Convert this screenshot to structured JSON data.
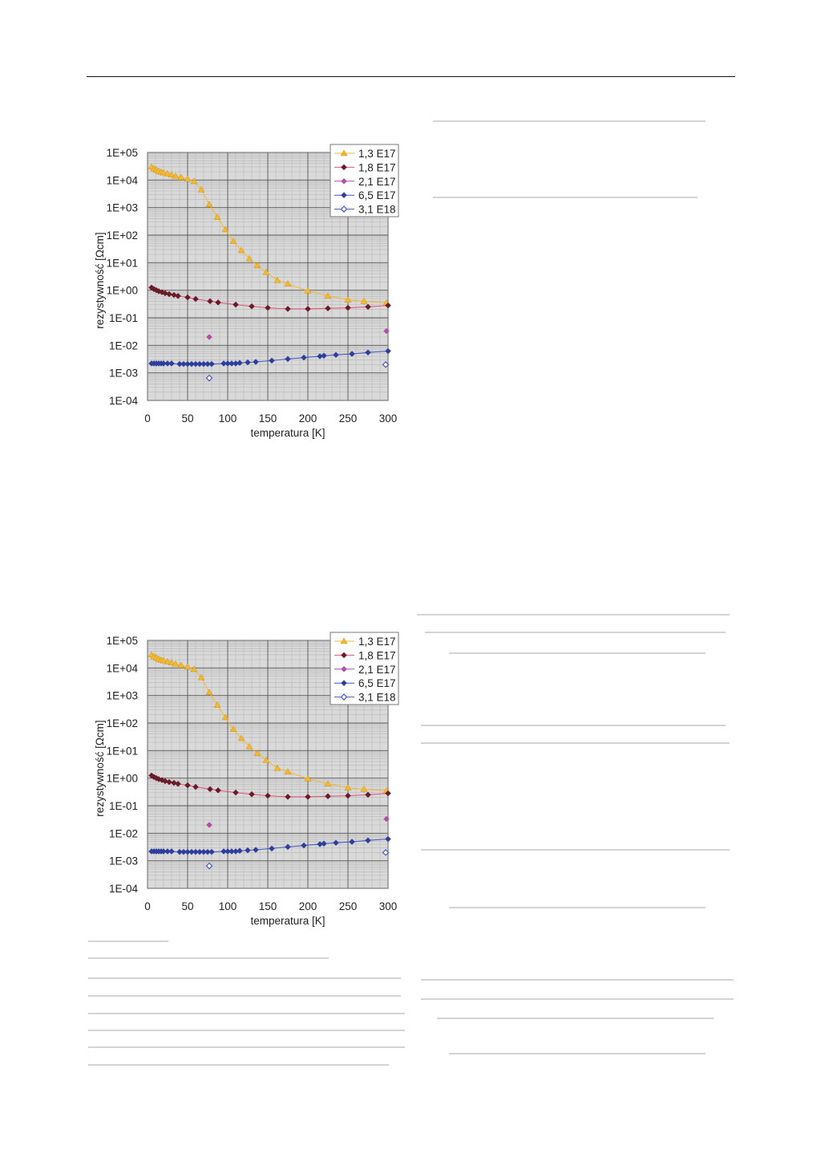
{
  "chart_data": [
    {
      "type": "scatter",
      "xlabel": "temperatura [K]",
      "ylabel": "rezystywność [Ωcm]",
      "xlim": [
        0,
        300
      ],
      "ylim": [
        0.0001,
        100000
      ],
      "y_scale": "log",
      "x_ticks": [
        "0",
        "50",
        "100",
        "150",
        "200",
        "250",
        "300"
      ],
      "y_ticks": [
        "1E+05",
        "1E+04",
        "1E+03",
        "1E+02",
        "1E+01",
        "1E+00",
        "1E-01",
        "1E-02",
        "1E-03",
        "1E-04"
      ],
      "grid": true,
      "legend_position": "top-right",
      "series": [
        {
          "name": "1,3 E17",
          "color": "#f5b82e",
          "marker": "triangle",
          "line": true,
          "x": [
            5,
            8,
            11,
            14,
            17,
            20,
            25,
            30,
            35,
            42,
            50,
            58,
            67,
            77,
            87,
            97,
            107,
            117,
            127,
            137,
            148,
            162,
            175,
            200,
            225,
            250,
            270,
            298
          ],
          "y": [
            30000,
            26000,
            23000,
            21000,
            19500,
            18500,
            17000,
            15500,
            14000,
            12500,
            11000,
            9000,
            4500,
            1300,
            450,
            160,
            60,
            28,
            14,
            8,
            4.5,
            2.3,
            1.7,
            0.95,
            0.62,
            0.45,
            0.4,
            0.35
          ]
        },
        {
          "name": "1,8 E17",
          "color": "#6b1a28",
          "marker": "diamond",
          "line": true,
          "x": [
            5,
            8,
            11,
            14,
            18,
            22,
            27,
            33,
            38,
            50,
            60,
            78,
            88,
            110,
            130,
            150,
            175,
            200,
            225,
            250,
            275,
            300
          ],
          "y": [
            1.25,
            1.1,
            1.0,
            0.92,
            0.85,
            0.78,
            0.72,
            0.67,
            0.62,
            0.55,
            0.48,
            0.4,
            0.36,
            0.3,
            0.26,
            0.23,
            0.21,
            0.21,
            0.22,
            0.23,
            0.25,
            0.28
          ]
        },
        {
          "name": "2,1 E17",
          "color": "#b34fa8",
          "marker": "diamond",
          "line": false,
          "x": [
            77,
            298
          ],
          "y": [
            0.02,
            0.033
          ]
        },
        {
          "name": "6,5 E17",
          "color": "#2e3e9e",
          "marker": "diamond",
          "line": true,
          "x": [
            5,
            8,
            11,
            14,
            17,
            20,
            25,
            30,
            40,
            45,
            50,
            55,
            60,
            65,
            70,
            75,
            80,
            95,
            100,
            105,
            110,
            115,
            125,
            135,
            155,
            175,
            195,
            215,
            220,
            235,
            255,
            275,
            300
          ],
          "y": [
            0.0022,
            0.0022,
            0.0022,
            0.0022,
            0.0022,
            0.0022,
            0.0022,
            0.0022,
            0.0021,
            0.0021,
            0.0021,
            0.0021,
            0.0021,
            0.0021,
            0.0021,
            0.0021,
            0.0021,
            0.0022,
            0.0022,
            0.0022,
            0.0022,
            0.0023,
            0.0024,
            0.0025,
            0.0028,
            0.0032,
            0.0036,
            0.004,
            0.0042,
            0.0045,
            0.0049,
            0.0055,
            0.0062
          ]
        },
        {
          "name": "3,1 E18",
          "color": "#4a5bc2",
          "marker": "diamond-open",
          "line": false,
          "x": [
            77,
            297
          ],
          "y": [
            0.00065,
            0.002
          ]
        }
      ]
    },
    {
      "type": "scatter",
      "xlabel": "temperatura [K]",
      "ylabel": "rezystywność [Ωcm]",
      "xlim": [
        0,
        300
      ],
      "ylim": [
        0.0001,
        100000
      ],
      "y_scale": "log",
      "x_ticks": [
        "0",
        "50",
        "100",
        "150",
        "200",
        "250",
        "300"
      ],
      "y_ticks": [
        "1E+05",
        "1E+04",
        "1E+03",
        "1E+02",
        "1E+01",
        "1E+00",
        "1E-01",
        "1E-02",
        "1E-03",
        "1E-04"
      ],
      "grid": true,
      "legend_position": "top-right",
      "series": [
        {
          "name": "1,3 E17",
          "color": "#f5b82e",
          "marker": "triangle",
          "line": true,
          "x": [
            5,
            8,
            11,
            14,
            17,
            20,
            25,
            30,
            35,
            42,
            50,
            58,
            67,
            77,
            87,
            97,
            107,
            117,
            127,
            137,
            148,
            162,
            175,
            200,
            225,
            250,
            270,
            298
          ],
          "y": [
            30000,
            26000,
            23000,
            21000,
            19500,
            18500,
            17000,
            15500,
            14000,
            12500,
            11000,
            9000,
            4500,
            1300,
            450,
            160,
            60,
            28,
            14,
            8,
            4.5,
            2.3,
            1.7,
            0.95,
            0.62,
            0.45,
            0.4,
            0.35
          ]
        },
        {
          "name": "1,8 E17",
          "color": "#6b1a28",
          "marker": "diamond",
          "line": true,
          "x": [
            5,
            8,
            11,
            14,
            18,
            22,
            27,
            33,
            38,
            50,
            60,
            78,
            88,
            110,
            130,
            150,
            175,
            200,
            225,
            250,
            275,
            300
          ],
          "y": [
            1.25,
            1.1,
            1.0,
            0.92,
            0.85,
            0.78,
            0.72,
            0.67,
            0.62,
            0.55,
            0.48,
            0.4,
            0.36,
            0.3,
            0.26,
            0.23,
            0.21,
            0.21,
            0.22,
            0.23,
            0.25,
            0.28
          ]
        },
        {
          "name": "2,1 E17",
          "color": "#b34fa8",
          "marker": "diamond",
          "line": false,
          "x": [
            77,
            298
          ],
          "y": [
            0.02,
            0.033
          ]
        },
        {
          "name": "6,5 E17",
          "color": "#2e3e9e",
          "marker": "diamond",
          "line": true,
          "x": [
            5,
            8,
            11,
            14,
            17,
            20,
            25,
            30,
            40,
            45,
            50,
            55,
            60,
            65,
            70,
            75,
            80,
            95,
            100,
            105,
            110,
            115,
            125,
            135,
            155,
            175,
            195,
            215,
            220,
            235,
            255,
            275,
            300
          ],
          "y": [
            0.0022,
            0.0022,
            0.0022,
            0.0022,
            0.0022,
            0.0022,
            0.0022,
            0.0022,
            0.0021,
            0.0021,
            0.0021,
            0.0021,
            0.0021,
            0.0021,
            0.0021,
            0.0021,
            0.0021,
            0.0022,
            0.0022,
            0.0022,
            0.0022,
            0.0023,
            0.0024,
            0.0025,
            0.0028,
            0.0032,
            0.0036,
            0.004,
            0.0042,
            0.0045,
            0.0049,
            0.0055,
            0.0062
          ]
        },
        {
          "name": "3,1 E18",
          "color": "#4a5bc2",
          "marker": "diamond-open",
          "line": false,
          "x": [
            77,
            297
          ],
          "y": [
            0.00065,
            0.002
          ]
        }
      ]
    }
  ]
}
